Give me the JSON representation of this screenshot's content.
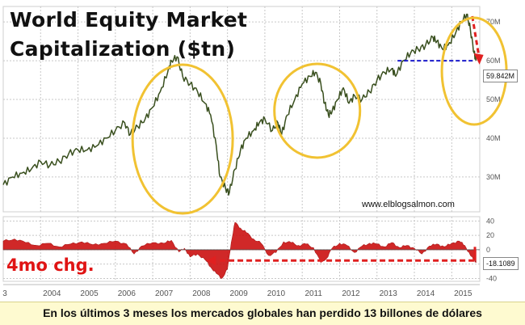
{
  "chart_data": {
    "title_line1": "World Equity Market",
    "title_line2": "Capitalization ($tn)",
    "source": "www.elblogsalmon.com",
    "xlabel": "",
    "ylabel": "",
    "x_range": [
      2003.0,
      2015.75
    ],
    "x_ticks": [
      "3",
      "2004",
      "2005",
      "2006",
      "2007",
      "2008",
      "2009",
      "2010",
      "2011",
      "2012",
      "2013",
      "2014",
      "2015"
    ],
    "top_panel": {
      "type": "line",
      "ylim": [
        21,
        74
      ],
      "y_ticks": [
        {
          "value": 30,
          "label": "30M"
        },
        {
          "value": 40,
          "label": "40M"
        },
        {
          "value": 50,
          "label": "50M"
        },
        {
          "value": 60,
          "label": "60M"
        },
        {
          "value": 70,
          "label": "70M"
        }
      ],
      "last_value_label": "59.842M",
      "last_value": 59.842,
      "series": {
        "x": [
          2003.0,
          2003.25,
          2003.5,
          2003.75,
          2004.0,
          2004.25,
          2004.5,
          2004.75,
          2005.0,
          2005.25,
          2005.5,
          2005.75,
          2006.0,
          2006.25,
          2006.4,
          2006.6,
          2006.8,
          2007.0,
          2007.2,
          2007.4,
          2007.5,
          2007.65,
          2007.8,
          2008.0,
          2008.2,
          2008.4,
          2008.55,
          2008.7,
          2008.8,
          2008.95,
          2009.05,
          2009.2,
          2009.35,
          2009.5,
          2009.7,
          2009.85,
          2010.0,
          2010.2,
          2010.35,
          2010.45,
          2010.6,
          2010.8,
          2011.0,
          2011.2,
          2011.35,
          2011.5,
          2011.6,
          2011.7,
          2011.8,
          2011.95,
          2012.1,
          2012.25,
          2012.4,
          2012.6,
          2012.8,
          2013.0,
          2013.2,
          2013.4,
          2013.5,
          2013.7,
          2013.9,
          2014.1,
          2014.3,
          2014.5,
          2014.6,
          2014.75,
          2014.9,
          2015.1,
          2015.25,
          2015.4,
          2015.5,
          2015.6,
          2015.65
        ],
        "y": [
          28,
          30,
          31,
          32,
          34,
          33,
          34,
          36,
          37,
          37,
          38,
          40,
          42,
          44,
          41,
          43,
          45,
          48,
          52,
          57,
          60,
          61,
          56,
          54,
          52,
          49,
          46,
          38,
          30,
          27,
          26,
          32,
          37,
          40,
          42,
          44,
          45,
          42,
          44,
          41,
          46,
          50,
          54,
          56,
          57,
          54,
          49,
          46,
          47,
          50,
          53,
          49,
          51,
          50,
          52,
          55,
          57,
          58,
          56,
          60,
          62,
          63,
          64,
          66,
          65,
          63,
          64,
          67,
          70,
          72,
          68,
          62,
          60
        ]
      },
      "reference_level": 60
    },
    "bottom_panel": {
      "type": "area",
      "ylim": [
        -44,
        46
      ],
      "y_ticks": [
        {
          "value": 40,
          "label": "40"
        },
        {
          "value": 20,
          "label": "20"
        },
        {
          "value": 0,
          "label": "0"
        },
        {
          "value": -20,
          "label": "-20"
        },
        {
          "value": -40,
          "label": "-40"
        }
      ],
      "label": "4mo chg.",
      "last_value_label": "-18.1089",
      "last_value": -18.1089,
      "series": {
        "x": [
          2003.0,
          2003.3,
          2003.6,
          2003.9,
          2004.2,
          2004.5,
          2004.8,
          2005.1,
          2005.4,
          2005.7,
          2006.0,
          2006.3,
          2006.5,
          2006.7,
          2007.0,
          2007.3,
          2007.5,
          2007.7,
          2007.85,
          2008.0,
          2008.2,
          2008.4,
          2008.55,
          2008.7,
          2008.85,
          2009.0,
          2009.1,
          2009.2,
          2009.35,
          2009.5,
          2009.7,
          2009.9,
          2010.1,
          2010.3,
          2010.5,
          2010.7,
          2010.9,
          2011.1,
          2011.3,
          2011.5,
          2011.65,
          2011.8,
          2012.0,
          2012.2,
          2012.4,
          2012.6,
          2012.8,
          2013.0,
          2013.2,
          2013.4,
          2013.6,
          2013.8,
          2014.0,
          2014.2,
          2014.4,
          2014.6,
          2014.8,
          2015.0,
          2015.2,
          2015.35,
          2015.5,
          2015.6,
          2015.65
        ],
        "y": [
          12,
          15,
          10,
          6,
          9,
          4,
          8,
          11,
          7,
          9,
          12,
          8,
          -6,
          5,
          10,
          9,
          13,
          -3,
          2,
          -10,
          -6,
          -14,
          -24,
          -33,
          -40,
          -27,
          10,
          38,
          30,
          24,
          15,
          9,
          -8,
          -4,
          11,
          10,
          6,
          8,
          3,
          -18,
          -12,
          2,
          9,
          6,
          -4,
          5,
          9,
          8,
          4,
          10,
          3,
          6,
          2,
          -6,
          5,
          8,
          4,
          9,
          12,
          6,
          -8,
          -14,
          -18
        ]
      },
      "reference_level": -15
    },
    "caption": "En los últimos 3 meses los mercados globales han perdido 13 billones de dólares",
    "colors": {
      "line": "#394f1e",
      "area_fill": "#cc1111",
      "ellipse": "#f1c232",
      "highlight": "#e02020",
      "reference_blue": "#1a1acc",
      "grid": "#c7c7c7",
      "axis_text": "#555555",
      "caption_bg": "#fefad0"
    }
  }
}
